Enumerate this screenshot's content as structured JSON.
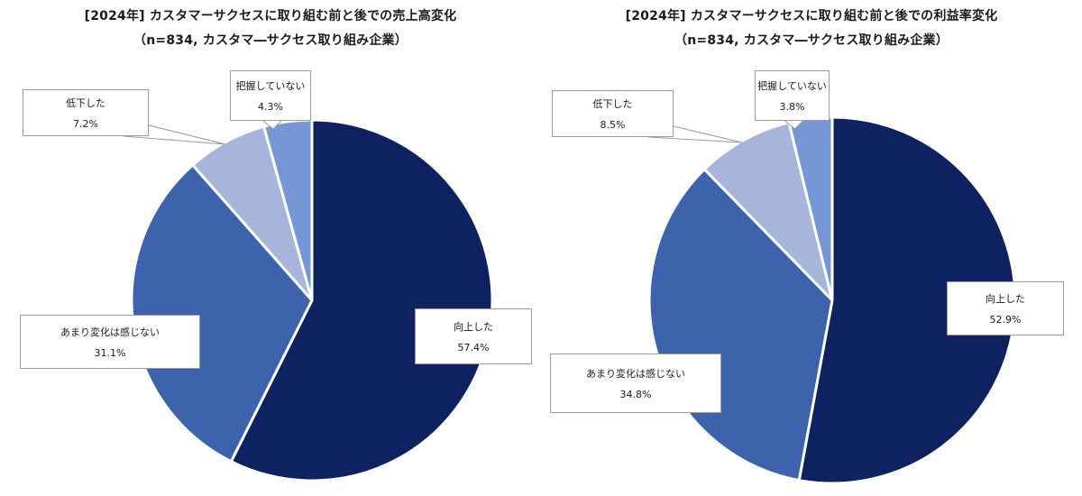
{
  "charts": [
    {
      "title_line1": "[2024年] カスタマーサクセスに取り組む前と後での売上高変化",
      "title_line2": "（n=834, カスタマ―サクセス取り組み企業）"
    },
    {
      "title_line1": "[2024年] カスタマーサクセスに取り組む前と後での利益率変化",
      "title_line2": "（n=834, カスタマ―サクセス取り組み企業）"
    }
  ],
  "colors": {
    "向上した": "#0e2160",
    "あまり変化は感じない": "#3d63ac",
    "低下した": "#a8b5da",
    "把握していない": "#7597d6"
  },
  "chart_data": [
    {
      "type": "pie",
      "title": "[2024年] カスタマーサクセスに取り組む前と後での売上高変化",
      "subtitle": "（n=834, カスタマ―サクセス取り組み企業）",
      "unit": "%",
      "slices": [
        {
          "label": "向上した",
          "value": 57.4,
          "value_label": "57.4%"
        },
        {
          "label": "あまり変化は感じない",
          "value": 31.1,
          "value_label": "31.1%"
        },
        {
          "label": "低下した",
          "value": 7.2,
          "value_label": "7.2%"
        },
        {
          "label": "把握していない",
          "value": 4.3,
          "value_label": "4.3%"
        }
      ]
    },
    {
      "type": "pie",
      "title": "[2024年] カスタマーサクセスに取り組む前と後での利益率変化",
      "subtitle": "（n=834, カスタマ―サクセス取り組み企業）",
      "unit": "%",
      "slices": [
        {
          "label": "向上した",
          "value": 52.9,
          "value_label": "52.9%"
        },
        {
          "label": "あまり変化は感じない",
          "value": 34.8,
          "value_label": "34.8%"
        },
        {
          "label": "低下した",
          "value": 8.5,
          "value_label": "8.5%"
        },
        {
          "label": "把握していない",
          "value": 3.8,
          "value_label": "3.8%"
        }
      ]
    }
  ]
}
